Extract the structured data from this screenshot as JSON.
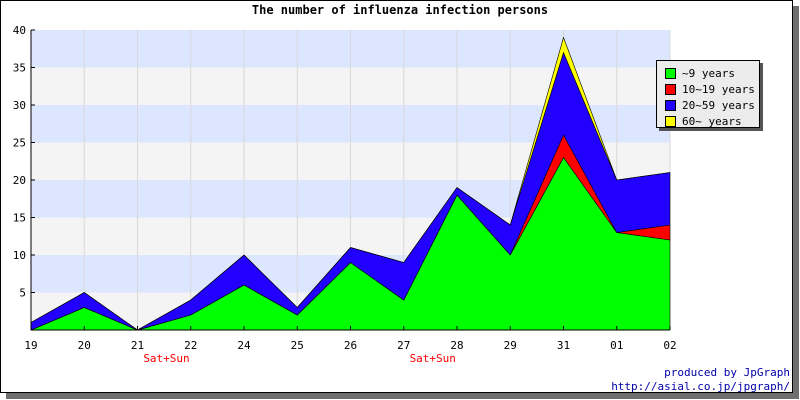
{
  "chart_data": {
    "type": "area",
    "stacked": true,
    "title": "The number of influenza infection persons",
    "categories": [
      "19",
      "20",
      "21",
      "22",
      "24",
      "25",
      "26",
      "27",
      "28",
      "29",
      "31",
      "01",
      "02"
    ],
    "weekend_notes": [
      {
        "category": "21",
        "text": "Sat+Sun"
      },
      {
        "category": "27",
        "text": "Sat+Sun"
      }
    ],
    "ylim": [
      0,
      40
    ],
    "yticks": [
      5,
      10,
      15,
      20,
      25,
      30,
      35,
      40
    ],
    "grid": true,
    "legend_position": "right",
    "series": [
      {
        "name": "~9 years",
        "color": "#00ff00",
        "values": [
          0,
          3,
          0,
          2,
          6,
          2,
          9,
          4,
          18,
          10,
          23,
          13,
          12
        ]
      },
      {
        "name": "10~19 years",
        "color": "#ff0000",
        "values": [
          0,
          0,
          0,
          0,
          0,
          0,
          0,
          0,
          0,
          0,
          3,
          0,
          2
        ]
      },
      {
        "name": "20~59 years",
        "color": "#2200ff",
        "values": [
          1,
          2,
          0,
          2,
          4,
          1,
          2,
          5,
          1,
          4,
          11,
          7,
          7
        ]
      },
      {
        "name": "60~ years",
        "color": "#ffff00",
        "values": [
          0,
          0,
          0,
          0,
          0,
          0,
          0,
          0,
          0,
          0,
          2,
          0,
          0
        ]
      }
    ]
  },
  "credit": {
    "line1": "produced by JpGraph",
    "line2": "http://asial.co.jp/jpgraph/"
  }
}
